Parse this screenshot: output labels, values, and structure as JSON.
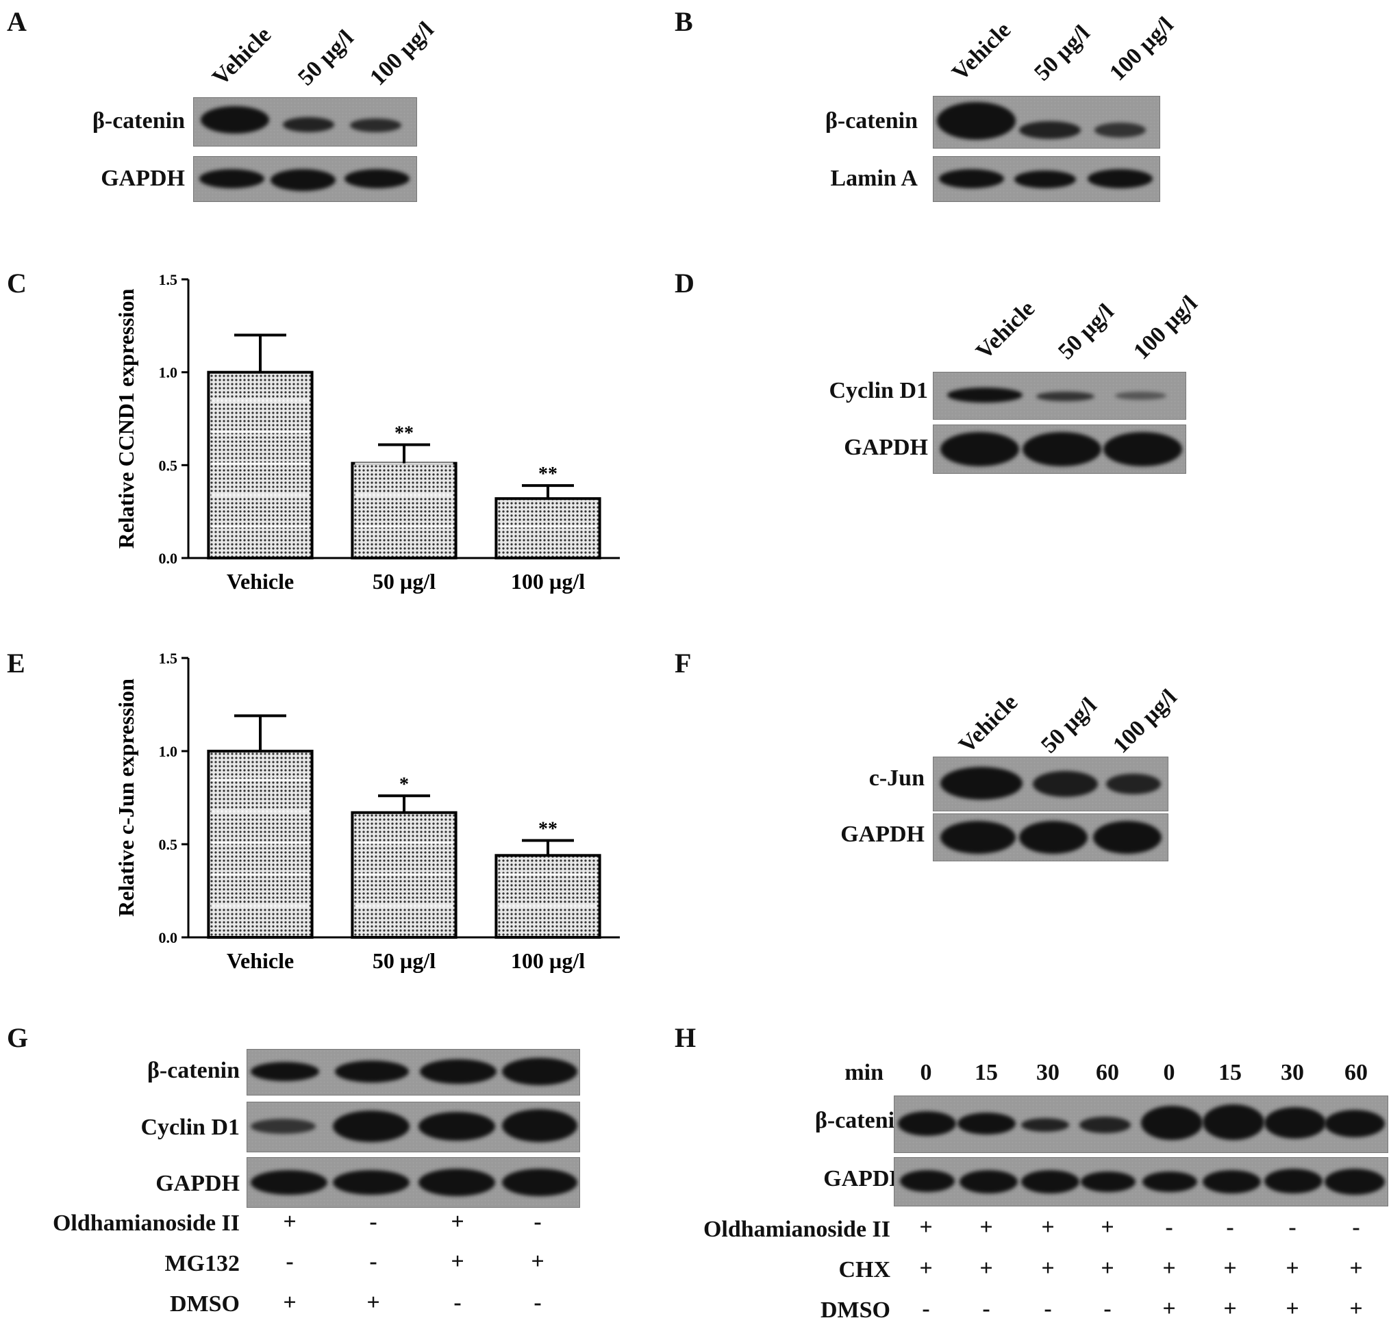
{
  "panels": {
    "A": {
      "label": "A",
      "lanes": [
        "Vehicle",
        "50 µg/l",
        "100 µg/l"
      ],
      "rows": [
        "β-catenin",
        "GAPDH"
      ]
    },
    "B": {
      "label": "B",
      "lanes": [
        "Vehicle",
        "50 µg/l",
        "100 µg/l"
      ],
      "rows": [
        "β-catenin",
        "Lamin A"
      ]
    },
    "D": {
      "label": "D",
      "lanes": [
        "Vehicle",
        "50 µg/l",
        "100 µg/l"
      ],
      "rows": [
        "Cyclin D1",
        "GAPDH"
      ]
    },
    "F": {
      "label": "F",
      "lanes": [
        "Vehicle",
        "50 µg/l",
        "100 µg/l"
      ],
      "rows": [
        "c-Jun",
        "GAPDH"
      ]
    },
    "G": {
      "label": "G",
      "rows": [
        "β-catenin",
        "Cyclin D1",
        "GAPDH"
      ],
      "conditions": [
        {
          "name": "Oldhamianoside II",
          "values": [
            "+",
            "-",
            "+",
            "-"
          ]
        },
        {
          "name": "MG132",
          "values": [
            "-",
            "-",
            "+",
            "+"
          ]
        },
        {
          "name": "DMSO",
          "values": [
            "+",
            "+",
            "-",
            "-"
          ]
        }
      ]
    },
    "H": {
      "label": "H",
      "time_label": "min",
      "times": [
        "0",
        "15",
        "30",
        "60",
        "0",
        "15",
        "30",
        "60"
      ],
      "rows": [
        "β-catenin",
        "GAPDH"
      ],
      "conditions": [
        {
          "name": "Oldhamianoside II",
          "values": [
            "+",
            "+",
            "+",
            "+",
            "-",
            "-",
            "-",
            "-"
          ]
        },
        {
          "name": "CHX",
          "values": [
            "+",
            "+",
            "+",
            "+",
            "+",
            "+",
            "+",
            "+"
          ]
        },
        {
          "name": "DMSO",
          "values": [
            "-",
            "-",
            "-",
            "-",
            "+",
            "+",
            "+",
            "+"
          ]
        }
      ]
    }
  },
  "chart_data": [
    {
      "type": "bar",
      "panel": "C",
      "title": "",
      "ylabel": "Relative CCND1 expression",
      "xlabel": "",
      "categories": [
        "Vehicle",
        "50 µg/l",
        "100 µg/l"
      ],
      "values": [
        1.0,
        0.51,
        0.32
      ],
      "errors": [
        0.2,
        0.1,
        0.07
      ],
      "significance": [
        "",
        "**",
        "**"
      ],
      "ylim": [
        0,
        1.5
      ],
      "yticks": [
        "0.0",
        "0.5",
        "1.0",
        "1.5"
      ]
    },
    {
      "type": "bar",
      "panel": "E",
      "title": "",
      "ylabel": "Relative c-Jun expression",
      "xlabel": "",
      "categories": [
        "Vehicle",
        "50 µg/l",
        "100 µg/l"
      ],
      "values": [
        1.0,
        0.67,
        0.44
      ],
      "errors": [
        0.19,
        0.09,
        0.08
      ],
      "significance": [
        "",
        "*",
        "**"
      ],
      "ylim": [
        0,
        1.5
      ],
      "yticks": [
        "0.0",
        "0.5",
        "1.0",
        "1.5"
      ]
    }
  ]
}
